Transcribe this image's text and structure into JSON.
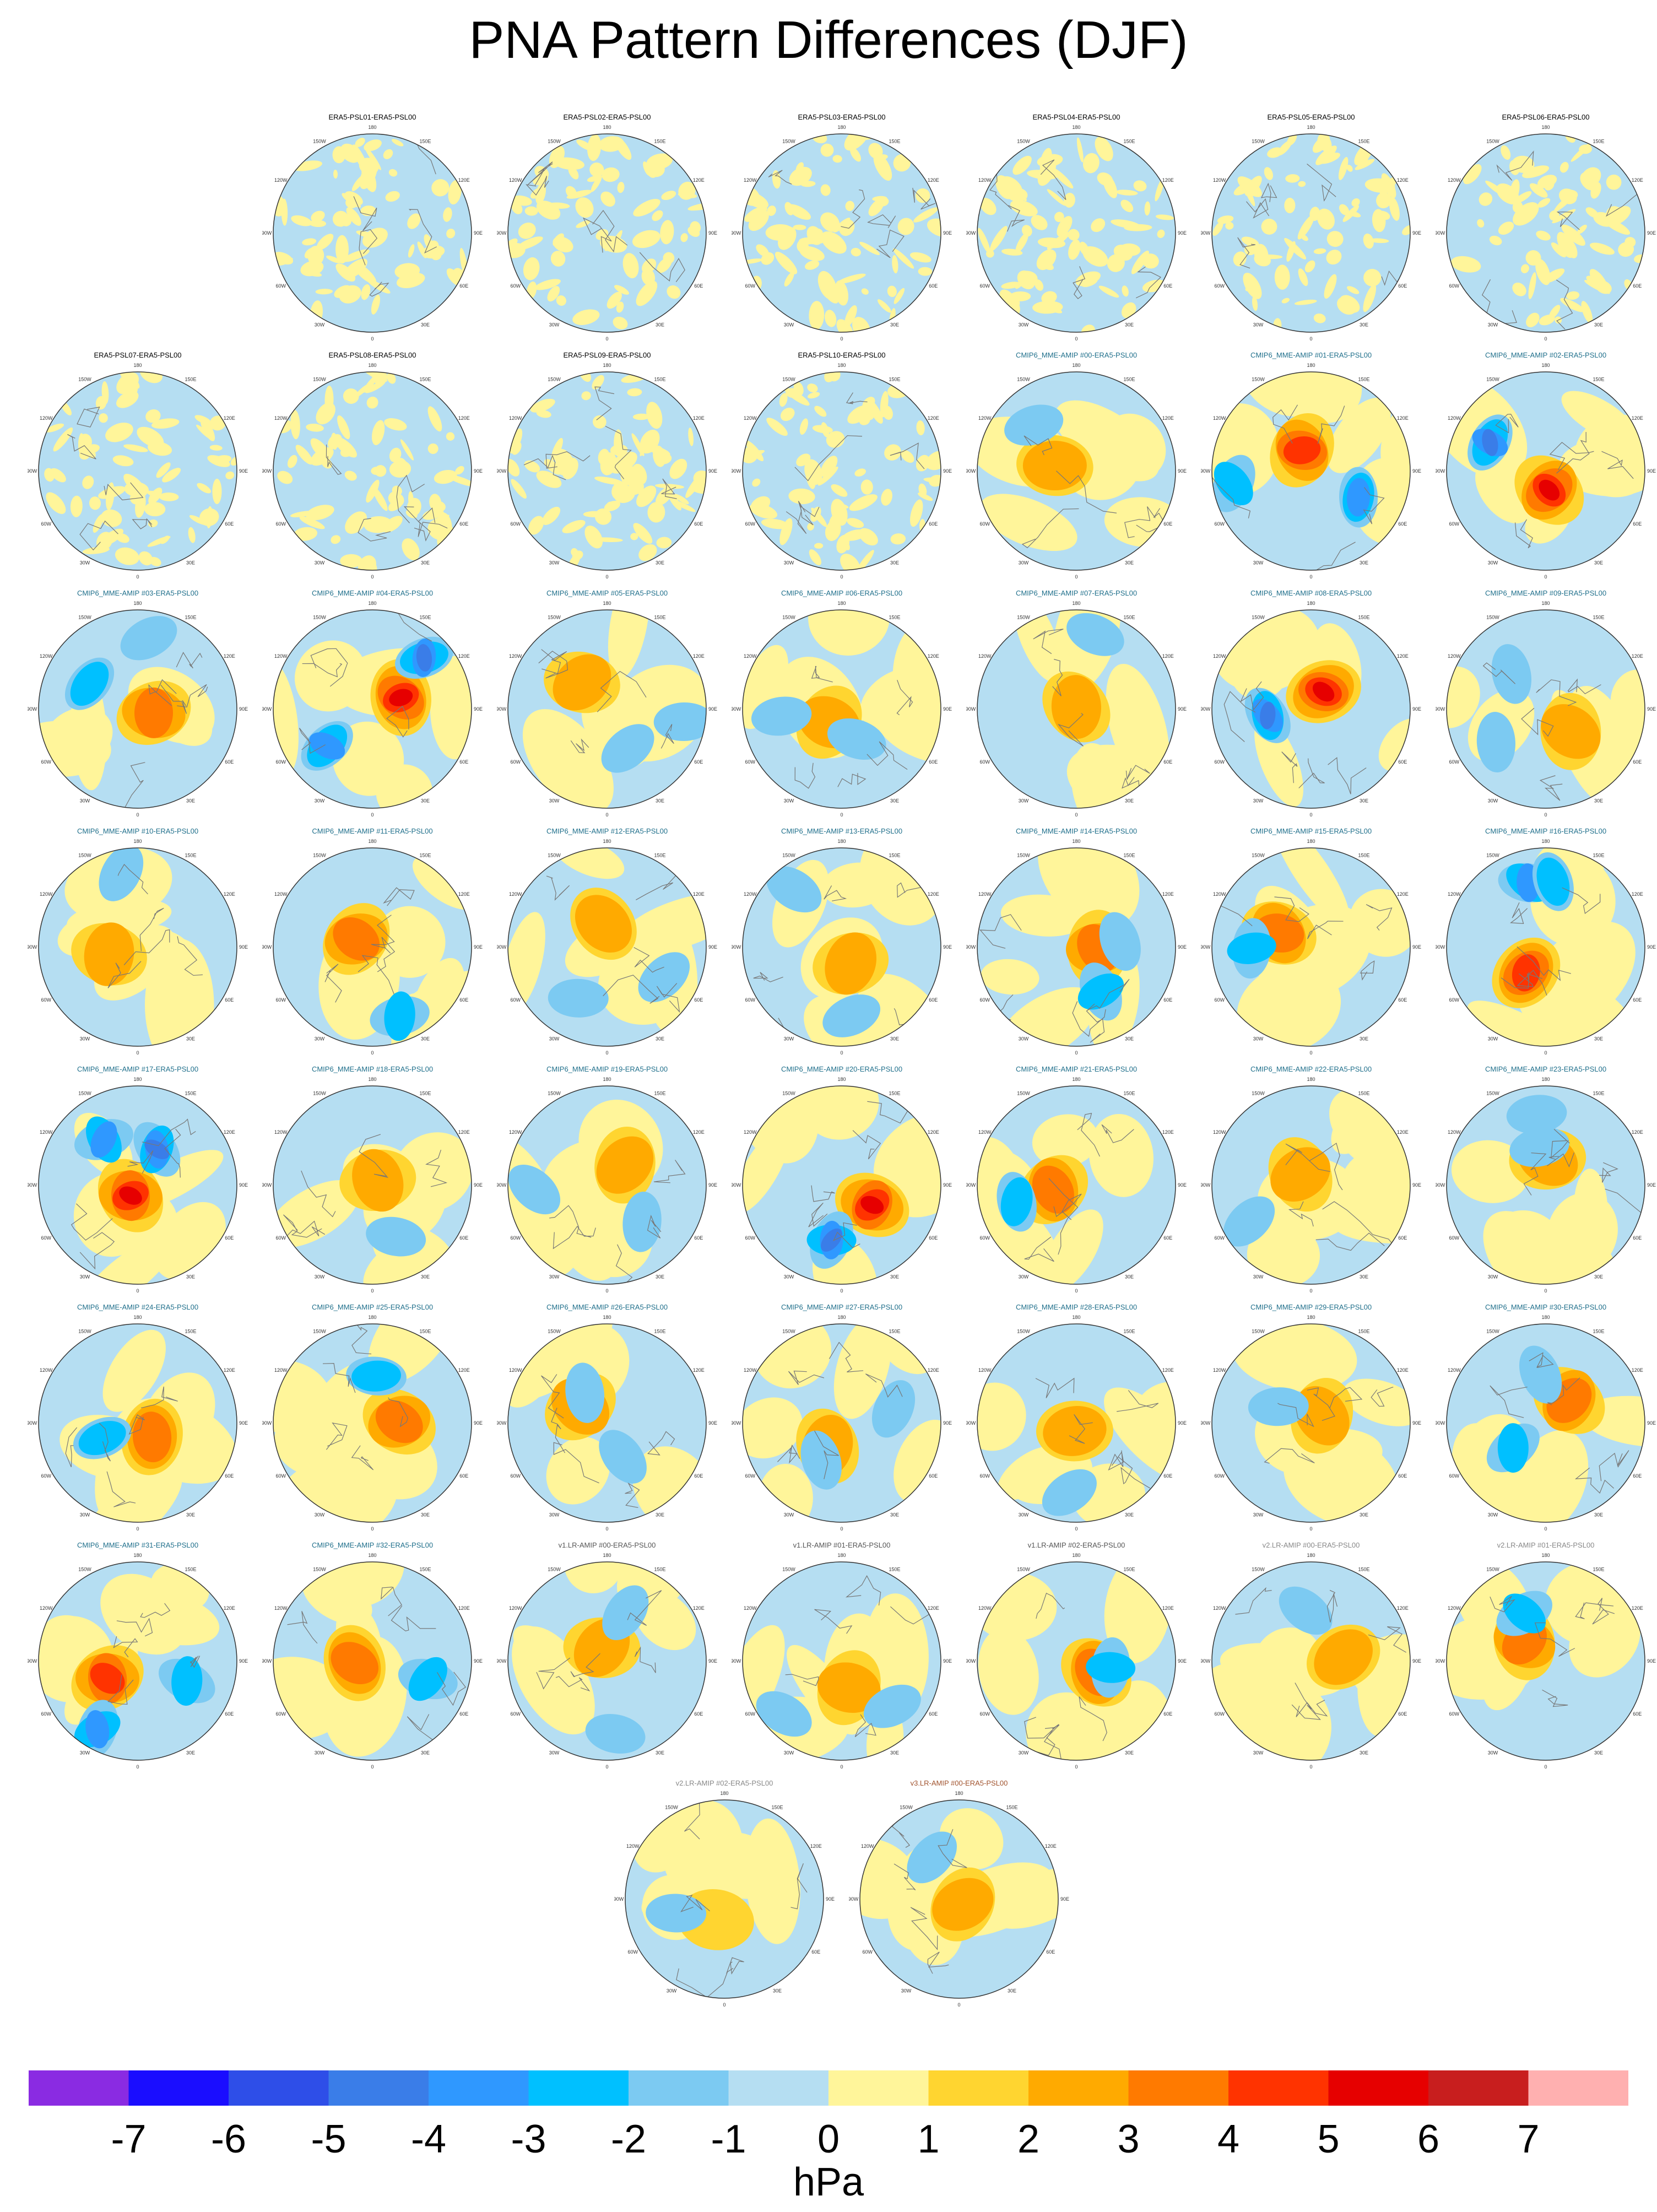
{
  "title": "PNA Pattern Differences (DJF)",
  "colorbar": {
    "units": "hPa",
    "labels": [
      "-7",
      "-6",
      "-5",
      "-4",
      "-3",
      "-2",
      "-1",
      "0",
      "1",
      "2",
      "3",
      "4",
      "5",
      "6",
      "7"
    ],
    "colors": [
      "#8a2be2",
      "#1a0dff",
      "#2e4ee8",
      "#3a7de8",
      "#2f98ff",
      "#00c0ff",
      "#7ccaf2",
      "#b5def2",
      "#fff59a",
      "#ffd530",
      "#ffaa00",
      "#ff7a00",
      "#ff3300",
      "#e60000",
      "#c81e1e",
      "#ffb0b0"
    ]
  },
  "map_axes": {
    "lon_labels": [
      "180",
      "150E",
      "120E",
      "90E",
      "60E",
      "30E",
      "0",
      "30W",
      "60W",
      "90W",
      "120W",
      "150W"
    ]
  },
  "panels": [
    {
      "title": "ERA5-PSL01-ERA5-PSL00",
      "group": "era5",
      "intensity": 0,
      "pattern": 0
    },
    {
      "title": "ERA5-PSL02-ERA5-PSL00",
      "group": "era5",
      "intensity": 0,
      "pattern": 1
    },
    {
      "title": "ERA5-PSL03-ERA5-PSL00",
      "group": "era5",
      "intensity": 0,
      "pattern": 2
    },
    {
      "title": "ERA5-PSL04-ERA5-PSL00",
      "group": "era5",
      "intensity": 0,
      "pattern": 3
    },
    {
      "title": "ERA5-PSL05-ERA5-PSL00",
      "group": "era5",
      "intensity": 0,
      "pattern": 4
    },
    {
      "title": "ERA5-PSL06-ERA5-PSL00",
      "group": "era5",
      "intensity": 0,
      "pattern": 5
    },
    {
      "title": "ERA5-PSL07-ERA5-PSL00",
      "group": "era5",
      "intensity": 0,
      "pattern": 6
    },
    {
      "title": "ERA5-PSL08-ERA5-PSL00",
      "group": "era5",
      "intensity": 0,
      "pattern": 7
    },
    {
      "title": "ERA5-PSL09-ERA5-PSL00",
      "group": "era5",
      "intensity": 0,
      "pattern": 8
    },
    {
      "title": "ERA5-PSL10-ERA5-PSL00",
      "group": "era5",
      "intensity": 0,
      "pattern": 9
    },
    {
      "title": "CMIP6_MME-AMIP #00-ERA5-PSL00",
      "group": "cmip6",
      "intensity": 2,
      "pattern": 10
    },
    {
      "title": "CMIP6_MME-AMIP #01-ERA5-PSL00",
      "group": "cmip6",
      "intensity": 4,
      "pattern": 11
    },
    {
      "title": "CMIP6_MME-AMIP #02-ERA5-PSL00",
      "group": "cmip6",
      "intensity": 5,
      "pattern": 12
    },
    {
      "title": "CMIP6_MME-AMIP #03-ERA5-PSL00",
      "group": "cmip6",
      "intensity": 3,
      "pattern": 13
    },
    {
      "title": "CMIP6_MME-AMIP #04-ERA5-PSL00",
      "group": "cmip6",
      "intensity": 5,
      "pattern": 14
    },
    {
      "title": "CMIP6_MME-AMIP #05-ERA5-PSL00",
      "group": "cmip6",
      "intensity": 2,
      "pattern": 15
    },
    {
      "title": "CMIP6_MME-AMIP #06-ERA5-PSL00",
      "group": "cmip6",
      "intensity": 2,
      "pattern": 16
    },
    {
      "title": "CMIP6_MME-AMIP #07-ERA5-PSL00",
      "group": "cmip6",
      "intensity": 2,
      "pattern": 17
    },
    {
      "title": "CMIP6_MME-AMIP #08-ERA5-PSL00",
      "group": "cmip6",
      "intensity": 5,
      "pattern": 18
    },
    {
      "title": "CMIP6_MME-AMIP #09-ERA5-PSL00",
      "group": "cmip6",
      "intensity": 2,
      "pattern": 19
    },
    {
      "title": "CMIP6_MME-AMIP #10-ERA5-PSL00",
      "group": "cmip6",
      "intensity": 2,
      "pattern": 20
    },
    {
      "title": "CMIP6_MME-AMIP #11-ERA5-PSL00",
      "group": "cmip6",
      "intensity": 3,
      "pattern": 21
    },
    {
      "title": "CMIP6_MME-AMIP #12-ERA5-PSL00",
      "group": "cmip6",
      "intensity": 2,
      "pattern": 22
    },
    {
      "title": "CMIP6_MME-AMIP #13-ERA5-PSL00",
      "group": "cmip6",
      "intensity": 2,
      "pattern": 23
    },
    {
      "title": "CMIP6_MME-AMIP #14-ERA5-PSL00",
      "group": "cmip6",
      "intensity": 3,
      "pattern": 24
    },
    {
      "title": "CMIP6_MME-AMIP #15-ERA5-PSL00",
      "group": "cmip6",
      "intensity": 3,
      "pattern": 25
    },
    {
      "title": "CMIP6_MME-AMIP #16-ERA5-PSL00",
      "group": "cmip6",
      "intensity": 4,
      "pattern": 26
    },
    {
      "title": "CMIP6_MME-AMIP #17-ERA5-PSL00",
      "group": "cmip6",
      "intensity": 5,
      "pattern": 27
    },
    {
      "title": "CMIP6_MME-AMIP #18-ERA5-PSL00",
      "group": "cmip6",
      "intensity": 2,
      "pattern": 28
    },
    {
      "title": "CMIP6_MME-AMIP #19-ERA5-PSL00",
      "group": "cmip6",
      "intensity": 2,
      "pattern": 29
    },
    {
      "title": "CMIP6_MME-AMIP #20-ERA5-PSL00",
      "group": "cmip6",
      "intensity": 5,
      "pattern": 30
    },
    {
      "title": "CMIP6_MME-AMIP #21-ERA5-PSL00",
      "group": "cmip6",
      "intensity": 3,
      "pattern": 31
    },
    {
      "title": "CMIP6_MME-AMIP #22-ERA5-PSL00",
      "group": "cmip6",
      "intensity": 2,
      "pattern": 32
    },
    {
      "title": "CMIP6_MME-AMIP #23-ERA5-PSL00",
      "group": "cmip6",
      "intensity": 2,
      "pattern": 33
    },
    {
      "title": "CMIP6_MME-AMIP #24-ERA5-PSL00",
      "group": "cmip6",
      "intensity": 3,
      "pattern": 34
    },
    {
      "title": "CMIP6_MME-AMIP #25-ERA5-PSL00",
      "group": "cmip6",
      "intensity": 3,
      "pattern": 35
    },
    {
      "title": "CMIP6_MME-AMIP #26-ERA5-PSL00",
      "group": "cmip6",
      "intensity": 2,
      "pattern": 36
    },
    {
      "title": "CMIP6_MME-AMIP #27-ERA5-PSL00",
      "group": "cmip6",
      "intensity": 2,
      "pattern": 37
    },
    {
      "title": "CMIP6_MME-AMIP #28-ERA5-PSL00",
      "group": "cmip6",
      "intensity": 2,
      "pattern": 38
    },
    {
      "title": "CMIP6_MME-AMIP #29-ERA5-PSL00",
      "group": "cmip6",
      "intensity": 2,
      "pattern": 39
    },
    {
      "title": "CMIP6_MME-AMIP #30-ERA5-PSL00",
      "group": "cmip6",
      "intensity": 3,
      "pattern": 40
    },
    {
      "title": "CMIP6_MME-AMIP #31-ERA5-PSL00",
      "group": "cmip6",
      "intensity": 4,
      "pattern": 41
    },
    {
      "title": "CMIP6_MME-AMIP #32-ERA5-PSL00",
      "group": "cmip6",
      "intensity": 3,
      "pattern": 42
    },
    {
      "title": "v1.LR-AMIP #00-ERA5-PSL00",
      "group": "v1",
      "intensity": 2,
      "pattern": 43
    },
    {
      "title": "v1.LR-AMIP #01-ERA5-PSL00",
      "group": "v1",
      "intensity": 2,
      "pattern": 44
    },
    {
      "title": "v1.LR-AMIP #02-ERA5-PSL00",
      "group": "v1",
      "intensity": 3,
      "pattern": 45
    },
    {
      "title": "v2.LR-AMIP #00-ERA5-PSL00",
      "group": "v2",
      "intensity": 2,
      "pattern": 46
    },
    {
      "title": "v2.LR-AMIP #01-ERA5-PSL00",
      "group": "v2",
      "intensity": 3,
      "pattern": 47
    },
    {
      "title": "v2.LR-AMIP #02-ERA5-PSL00",
      "group": "v2",
      "intensity": 1,
      "pattern": 48
    },
    {
      "title": "v3.LR-AMIP #00-ERA5-PSL00",
      "group": "v3",
      "intensity": 2,
      "pattern": 49
    }
  ],
  "group_colors": {
    "era5": "#000000",
    "cmip6": "#1f6f8b",
    "v1": "#555555",
    "v2": "#888888",
    "v3": "#a0522d"
  }
}
